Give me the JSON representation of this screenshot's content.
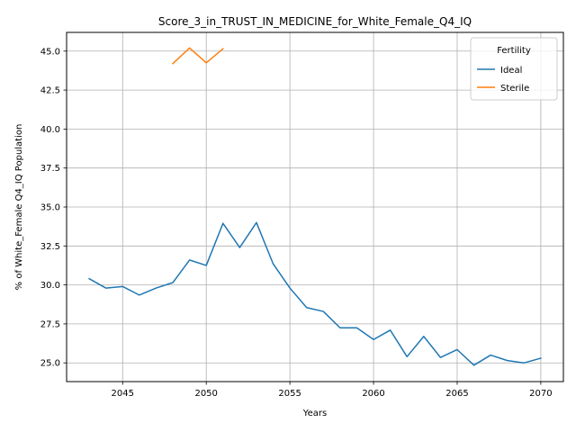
{
  "chart_data": {
    "type": "line",
    "title": "Score_3_in_TRUST_IN_MEDICINE_for_White_Female_Q4_IQ",
    "xlabel": "Years",
    "ylabel": "% of White_Female Q4_IQ Population",
    "xlim": [
      2041.65,
      2071.35
    ],
    "ylim": [
      23.8,
      46.2
    ],
    "xticks": [
      2045,
      2050,
      2055,
      2060,
      2065,
      2070
    ],
    "yticks": [
      25.0,
      27.5,
      30.0,
      32.5,
      35.0,
      37.5,
      40.0,
      42.5,
      45.0
    ],
    "grid": true,
    "legend": {
      "title": "Fertility",
      "placement": "top-right"
    },
    "series": [
      {
        "name": "Ideal",
        "color": "#1f77b4",
        "x": [
          2043,
          2044,
          2045,
          2046,
          2047,
          2048,
          2049,
          2050,
          2051,
          2052,
          2053,
          2054,
          2055,
          2056,
          2057,
          2058,
          2059,
          2060,
          2061,
          2062,
          2063,
          2064,
          2065,
          2066,
          2067,
          2068,
          2069,
          2070
        ],
        "y": [
          30.4,
          29.8,
          29.9,
          29.35,
          29.8,
          30.15,
          31.6,
          31.25,
          33.95,
          32.4,
          34.0,
          31.35,
          29.8,
          28.55,
          28.3,
          27.25,
          27.25,
          26.5,
          27.1,
          25.4,
          26.7,
          25.35,
          25.85,
          24.85,
          25.5,
          25.15,
          25.0,
          25.3
        ]
      },
      {
        "name": "Sterile",
        "color": "#ff7f0e",
        "x": [
          2048,
          2049,
          2050,
          2051
        ],
        "y": [
          44.2,
          45.2,
          44.25,
          45.15
        ]
      }
    ]
  }
}
